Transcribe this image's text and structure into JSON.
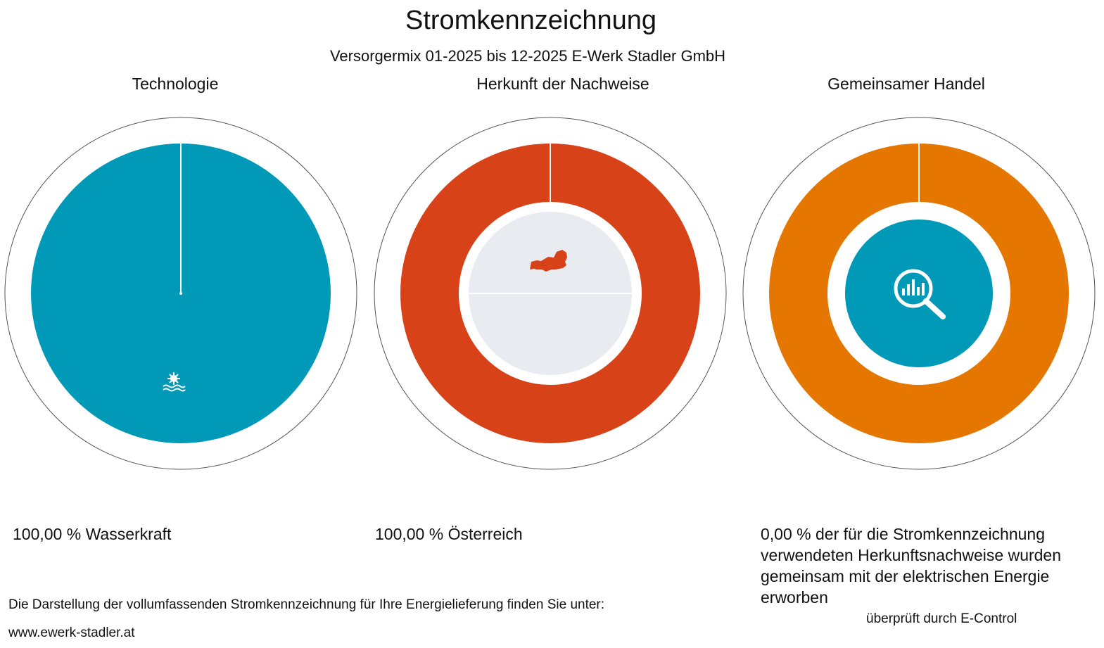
{
  "title": "Stromkennzeichnung",
  "subtitle": "Versorgermix 01-2025 bis 12-2025 E-Werk Stadler GmbH",
  "colors": {
    "technology": "#0099b8",
    "origin": "#d84218",
    "trade": "#e57600",
    "inner_gray": "#e8ecf1"
  },
  "chart_data": [
    {
      "type": "pie",
      "title": "Technologie",
      "categories": [
        "Wasserkraft"
      ],
      "values": [
        100.0
      ],
      "icon": "hydro-icon",
      "label": "100,00 % Wasserkraft"
    },
    {
      "type": "pie",
      "title": "Herkunft der Nachweise",
      "categories": [
        "Österreich"
      ],
      "values": [
        100.0
      ],
      "icon": "austria-map-icon",
      "label": "100,00 % Österreich"
    },
    {
      "type": "pie",
      "title": "Gemeinsamer Handel",
      "categories": [
        "gemeinsam erworben"
      ],
      "values": [
        0.0
      ],
      "icon": "magnifier-chart-icon",
      "label": "0,00 % der für die Stromkennzeichnung verwendeten Herkunftsnachweise wurden gemeinsam mit der elektrischen Energie erworben"
    }
  ],
  "footer": {
    "text": "Die Darstellung der vollumfassenden Stromkennzeichnung für Ihre Energielieferung finden Sie unter:",
    "link": "www.ewerk-stadler.at",
    "verified": "überprüft durch E-Control"
  }
}
